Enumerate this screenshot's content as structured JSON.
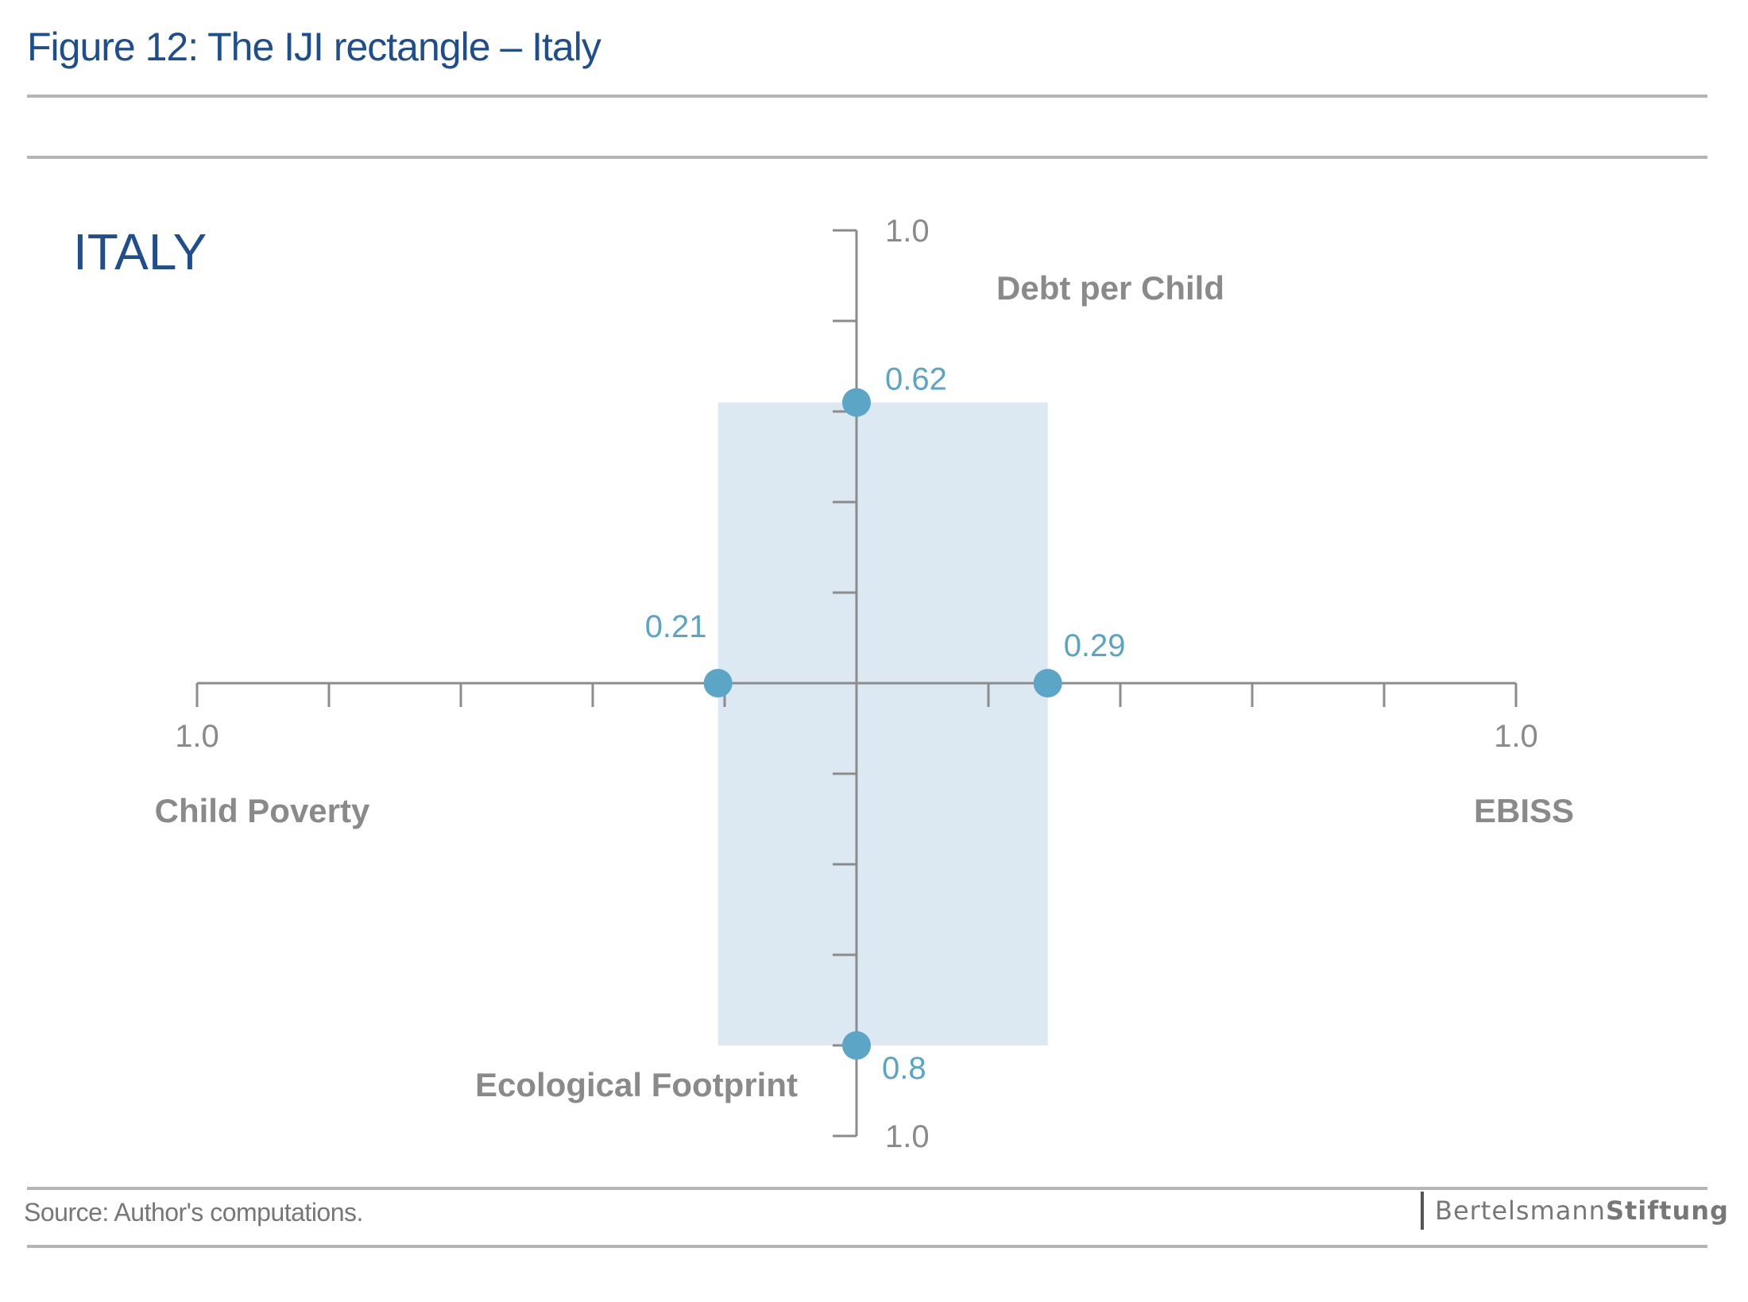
{
  "figure": {
    "title": "Figure 12: The IJI rectangle – Italy",
    "country": "ITALY",
    "source": "Source: Author's computations.",
    "brand": {
      "part1": "Bertelsmann",
      "part2": "Stiftung"
    }
  },
  "chart_data": {
    "type": "iji-rectangle",
    "title": "ITALY",
    "axes": [
      {
        "name": "Debt per Child",
        "direction": "up",
        "max": 1.0,
        "max_label": "1.0",
        "value": 0.62,
        "value_label": "0.62"
      },
      {
        "name": "Child Poverty",
        "direction": "left",
        "max": 1.0,
        "max_label": "1.0",
        "value": 0.21,
        "value_label": "0.21"
      },
      {
        "name": "EBISS",
        "direction": "right",
        "max": 1.0,
        "max_label": "1.0",
        "value": 0.29,
        "value_label": "0.29"
      },
      {
        "name": "Ecological Footprint",
        "direction": "down",
        "max": 1.0,
        "max_label": "1.0",
        "value": 0.8,
        "value_label": "0.8"
      }
    ],
    "ticks_per_axis": 5,
    "colors": {
      "rectangle": "#dce9f2",
      "points": "#5ba5c6",
      "values": "#5aa4c4",
      "axis": "#8c8c8c",
      "title": "#1f4e8c"
    }
  }
}
